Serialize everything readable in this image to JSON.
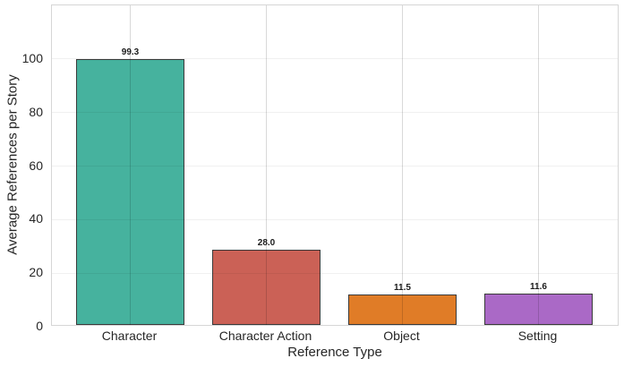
{
  "chart_data": {
    "type": "bar",
    "title": "",
    "xlabel": "Reference Type",
    "ylabel": "Average References per Story",
    "categories": [
      "Character",
      "Character Action",
      "Object",
      "Setting"
    ],
    "values": [
      99.3,
      28.0,
      11.5,
      11.6
    ],
    "value_labels": [
      "99.3",
      "28.0",
      "11.5",
      "11.6"
    ],
    "bar_colors": [
      "#46B29E",
      "#CB6156",
      "#E07C27",
      "#AA69C6"
    ],
    "bar_edge_color": "#3A3A3A",
    "yticks": [
      0,
      20,
      40,
      60,
      80,
      100
    ],
    "ytick_labels": [
      "0",
      "20",
      "40",
      "60",
      "80",
      "100"
    ],
    "ylim": [
      0,
      120
    ],
    "grid": "both",
    "legend_position": "none",
    "background_color": "#FFFFFF",
    "plot_border_color": "#D6D6D6",
    "text_color": "#262626"
  }
}
